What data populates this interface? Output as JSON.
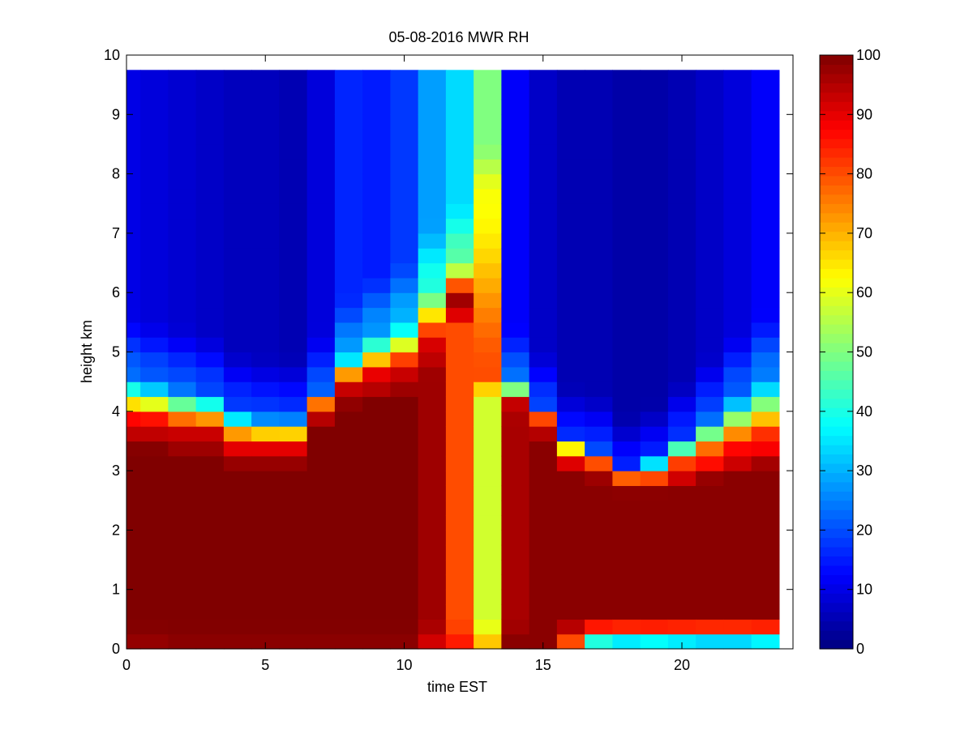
{
  "chart_data": {
    "type": "heatmap",
    "title": "05-08-2016 MWR RH",
    "xlabel": "time EST",
    "ylabel": "height km",
    "xlim": [
      0,
      24
    ],
    "ylim": [
      0,
      10
    ],
    "x_ticks": [
      0,
      5,
      10,
      15,
      20
    ],
    "y_ticks": [
      0,
      1,
      2,
      3,
      4,
      5,
      6,
      7,
      8,
      9,
      10
    ],
    "x_tick_labels": [
      "0",
      "5",
      "10",
      "15",
      "20"
    ],
    "y_tick_labels": [
      "0",
      "1",
      "2",
      "3",
      "4",
      "5",
      "6",
      "7",
      "8",
      "9",
      "10"
    ],
    "colormap": "jet",
    "colorbar": {
      "range": [
        0,
        100
      ],
      "ticks": [
        0,
        10,
        20,
        30,
        40,
        50,
        60,
        70,
        80,
        90,
        100
      ],
      "tick_labels": [
        "0",
        "10",
        "20",
        "30",
        "40",
        "50",
        "60",
        "70",
        "80",
        "90",
        "100"
      ]
    },
    "grid": false,
    "time_hours": [
      0,
      1,
      2,
      3,
      4,
      5,
      6,
      7,
      8,
      9,
      10,
      11,
      12,
      13,
      14,
      15,
      16,
      17,
      18,
      19,
      20,
      21,
      22,
      23
    ],
    "height_km_top": 9.75,
    "profiles": [
      {
        "t": 0,
        "sfc": 98,
        "low": 100,
        "base": 3.3,
        "mid": 93,
        "trans": 4.7,
        "up": 10
      },
      {
        "t": 1,
        "sfc": 98,
        "low": 100,
        "base": 3.3,
        "mid": 93,
        "trans": 4.6,
        "up": 9
      },
      {
        "t": 2,
        "sfc": 99,
        "low": 100,
        "base": 3.2,
        "mid": 93,
        "trans": 4.5,
        "up": 8
      },
      {
        "t": 3,
        "sfc": 99,
        "low": 100,
        "base": 3.2,
        "mid": 93,
        "trans": 4.4,
        "up": 7
      },
      {
        "t": 4,
        "sfc": 99,
        "low": 100,
        "base": 3.0,
        "mid": 90,
        "trans": 4.1,
        "up": 6
      },
      {
        "t": 5,
        "sfc": 99,
        "low": 100,
        "base": 3.0,
        "mid": 90,
        "trans": 4.0,
        "up": 6
      },
      {
        "t": 6,
        "sfc": 99,
        "low": 100,
        "base": 3.0,
        "mid": 90,
        "trans": 4.0,
        "up": 5
      },
      {
        "t": 7,
        "sfc": 99,
        "low": 100,
        "base": 3.6,
        "mid": 93,
        "trans": 4.4,
        "up": 9
      },
      {
        "t": 8,
        "sfc": 99,
        "low": 100,
        "base": 4.0,
        "mid": 93,
        "trans": 5.0,
        "up": 16
      },
      {
        "t": 9,
        "sfc": 99,
        "low": 100,
        "base": 4.1,
        "mid": 93,
        "trans": 5.4,
        "up": 15
      },
      {
        "t": 10,
        "sfc": 99,
        "low": 100,
        "base": 4.2,
        "mid": 93,
        "trans": 5.6,
        "up": 18
      },
      {
        "t": 11,
        "sfc": 92,
        "low": 97,
        "base": 4.6,
        "mid": 93,
        "trans": 6.2,
        "up": 28
      },
      {
        "t": 12,
        "sfc": 85,
        "low": 80,
        "base": 5.4,
        "mid": 98,
        "trans": 6.6,
        "up": 34
      },
      {
        "t": 13,
        "sfc": 68,
        "low": 58,
        "base": 4.2,
        "mid": 80,
        "trans": 7.6,
        "up": 50
      },
      {
        "t": 14,
        "sfc": 99,
        "low": 96,
        "base": 3.8,
        "mid": 93,
        "trans": 4.5,
        "up": 12
      },
      {
        "t": 15,
        "sfc": 99,
        "low": 99,
        "base": 3.4,
        "mid": 92,
        "trans": 4.1,
        "up": 7
      },
      {
        "t": 16,
        "sfc": 80,
        "low": 99,
        "base": 2.9,
        "mid": 85,
        "trans": 3.5,
        "up": 5
      },
      {
        "t": 17,
        "sfc": 40,
        "low": 99,
        "base": 2.8,
        "mid": 78,
        "trans": 3.4,
        "up": 5
      },
      {
        "t": 18,
        "sfc": 35,
        "low": 99,
        "base": 2.6,
        "mid": 72,
        "trans": 3.0,
        "up": 4
      },
      {
        "t": 19,
        "sfc": 37,
        "low": 99,
        "base": 2.6,
        "mid": 75,
        "trans": 3.2,
        "up": 4
      },
      {
        "t": 20,
        "sfc": 35,
        "low": 99,
        "base": 2.7,
        "mid": 82,
        "trans": 3.6,
        "up": 5
      },
      {
        "t": 21,
        "sfc": 33,
        "low": 99,
        "base": 2.8,
        "mid": 85,
        "trans": 4.0,
        "up": 7
      },
      {
        "t": 22,
        "sfc": 33,
        "low": 99,
        "base": 2.9,
        "mid": 88,
        "trans": 4.4,
        "up": 9
      },
      {
        "t": 23,
        "sfc": 36,
        "low": 99,
        "base": 3.0,
        "mid": 88,
        "trans": 4.7,
        "up": 12
      }
    ]
  }
}
